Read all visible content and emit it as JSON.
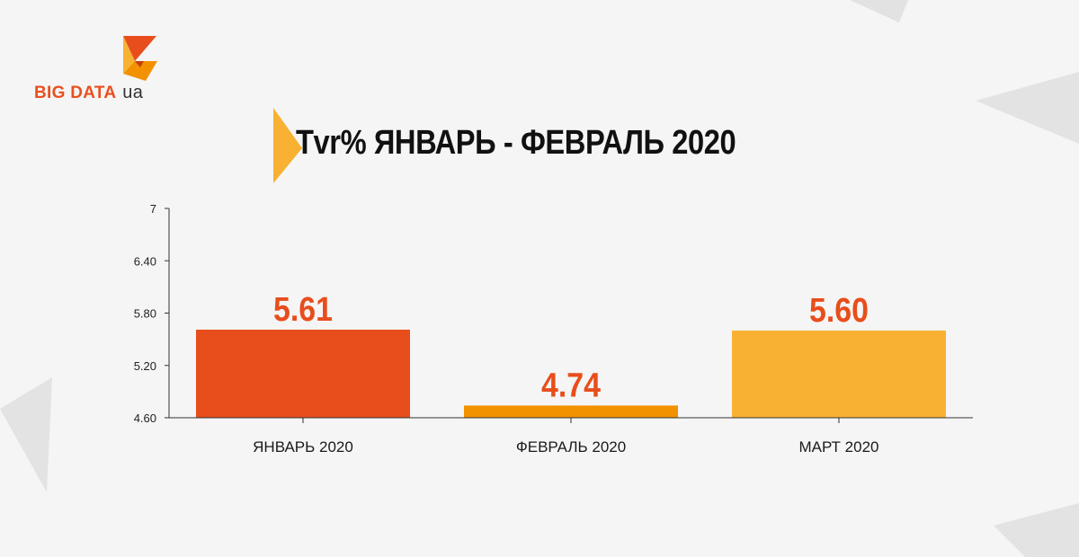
{
  "brand": {
    "name": "BIG DATA",
    "suffix": "ua",
    "colors": {
      "orange_red": "#e84e1b",
      "orange": "#f39200",
      "yellow": "#f8b133"
    }
  },
  "chart_data": {
    "type": "bar",
    "title": "Tvr% ЯНВАРЬ - ФЕВРАЛЬ 2020",
    "xlabel": "",
    "ylabel": "",
    "categories": [
      "ЯНВАРЬ 2020",
      "ФЕВРАЛЬ 2020",
      "МАРТ 2020"
    ],
    "values": [
      5.61,
      4.74,
      5.6
    ],
    "data_labels": [
      "5.61",
      "4.74",
      "5.60"
    ],
    "bar_colors": [
      "#e84e1b",
      "#f39200",
      "#f8b133"
    ],
    "label_color": "#e84e1b",
    "ylim": [
      4.6,
      7
    ],
    "yticks": [
      4.6,
      5.2,
      5.8,
      6.4,
      7
    ],
    "ytick_labels": [
      "4.60",
      "5.20",
      "5.80",
      "6.40",
      "7"
    ],
    "grid": false,
    "legend": "none"
  }
}
